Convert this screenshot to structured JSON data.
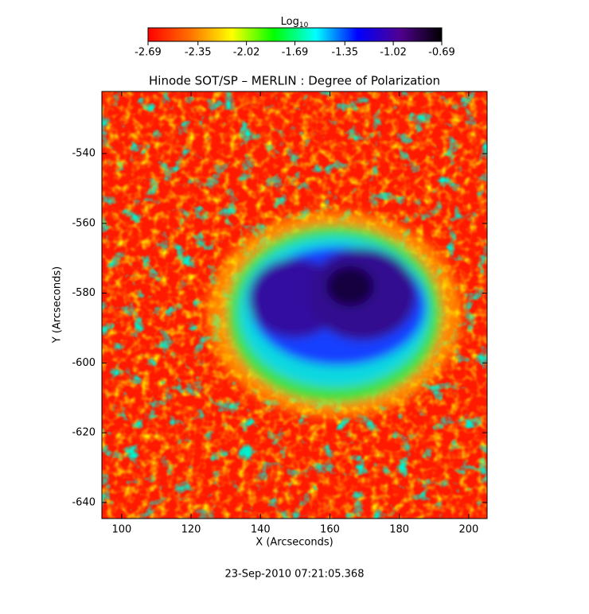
{
  "chart_data": {
    "type": "heatmap",
    "title": "Hinode SOT/SP – MERLIN : Degree of Polarization",
    "xlabel": "X (Arcseconds)",
    "ylabel": "Y (Arcseconds)",
    "xlim": [
      94.3,
      205.3
    ],
    "xticks": [
      100,
      120,
      140,
      160,
      180,
      200
    ],
    "ylim": [
      -644.6,
      -522.2
    ],
    "yticks": [
      -540,
      -560,
      -580,
      -600,
      -620,
      -640
    ],
    "colorbar": {
      "label": "Log",
      "label_subscript": "10",
      "lim": [
        -2.69,
        -0.69
      ],
      "ticks": [
        -2.69,
        -2.35,
        -2.02,
        -1.69,
        -1.35,
        -1.02,
        -0.69
      ],
      "colors": [
        "#ff0000",
        "#ff7000",
        "#ffff00",
        "#00ff00",
        "#00ffff",
        "#0000ff",
        "#500090",
        "#000000"
      ]
    },
    "footer": "23-Sep-2010 07:21:05.368"
  }
}
